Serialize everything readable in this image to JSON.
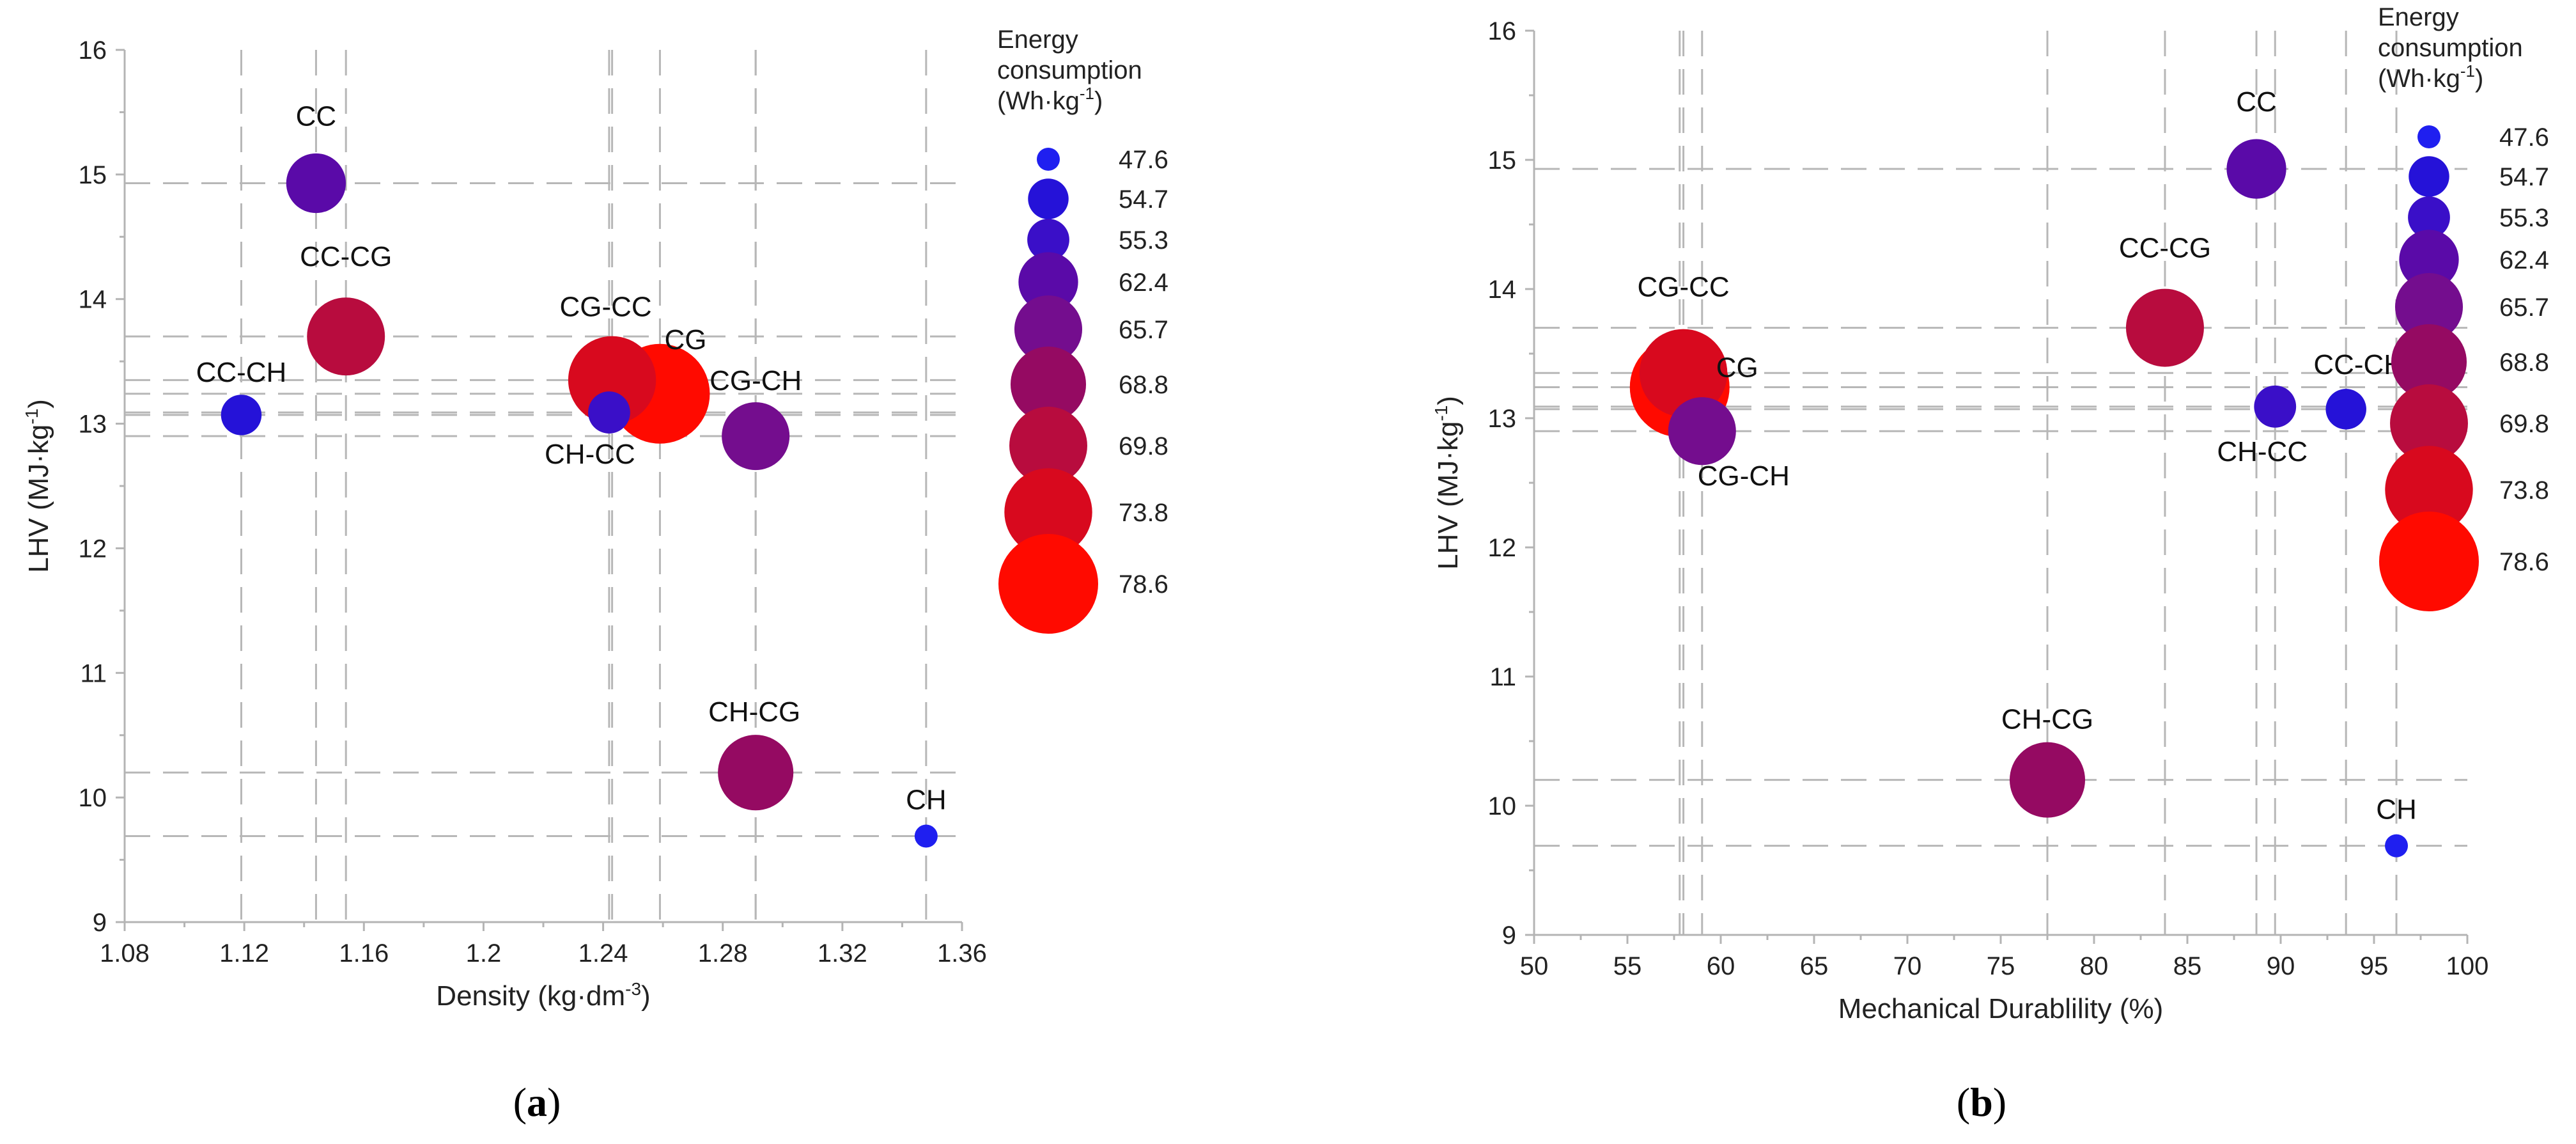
{
  "chart_data": [
    {
      "type": "scatter",
      "panel_label": "a",
      "xlabel": "Density (kg·dm",
      "xlabel_sup": "-3",
      "xlabel_end": ")",
      "ylabel": "LHV (MJ·kg",
      "ylabel_sup": "-1",
      "ylabel_end": ")",
      "xlim": [
        1.08,
        1.36
      ],
      "ylim": [
        9,
        16
      ],
      "x_ticks": [
        "1.08",
        "1.12",
        "1.16",
        "1.2",
        "1.24",
        "1.28",
        "1.32",
        "1.36"
      ],
      "y_ticks": [
        "9",
        "10",
        "11",
        "12",
        "13",
        "14",
        "15",
        "16"
      ],
      "size_variable": "Energy consumption (Wh·kg-1)",
      "points": [
        {
          "label": "CC",
          "x": 1.144,
          "y": 14.93,
          "energy": 62.4
        },
        {
          "label": "CC-CG",
          "x": 1.154,
          "y": 13.7,
          "energy": 69.8
        },
        {
          "label": "CC-CH",
          "x": 1.119,
          "y": 13.07,
          "energy": 54.7
        },
        {
          "label": "CG-CC",
          "x": 1.243,
          "y": 13.35,
          "energy": 73.8
        },
        {
          "label": "CG",
          "x": 1.259,
          "y": 13.24,
          "energy": 78.6
        },
        {
          "label": "CH-CC",
          "x": 1.242,
          "y": 13.09,
          "energy": 55.3
        },
        {
          "label": "CG-CH",
          "x": 1.291,
          "y": 12.9,
          "energy": 65.7
        },
        {
          "label": "CH-CG",
          "x": 1.291,
          "y": 10.2,
          "energy": 68.8
        },
        {
          "label": "CH",
          "x": 1.348,
          "y": 9.69,
          "energy": 47.6
        }
      ]
    },
    {
      "type": "scatter",
      "panel_label": "b",
      "xlabel": "Mechanical Durablility (%)",
      "ylabel": "LHV (MJ·kg",
      "ylabel_sup": "-1",
      "ylabel_end": ")",
      "xlim": [
        50,
        100
      ],
      "ylim": [
        9,
        16
      ],
      "x_ticks": [
        "50",
        "55",
        "60",
        "65",
        "70",
        "75",
        "80",
        "85",
        "90",
        "95",
        "100"
      ],
      "y_ticks": [
        "9",
        "10",
        "11",
        "12",
        "13",
        "14",
        "15",
        "16"
      ],
      "size_variable": "Energy consumption (Wh·kg-1)",
      "points": [
        {
          "label": "CC",
          "x": 88.7,
          "y": 14.93,
          "energy": 62.4
        },
        {
          "label": "CC-CG",
          "x": 83.8,
          "y": 13.7,
          "energy": 69.8
        },
        {
          "label": "CG-CC",
          "x": 58.0,
          "y": 13.35,
          "energy": 73.8
        },
        {
          "label": "CG",
          "x": 57.8,
          "y": 13.24,
          "energy": 78.6
        },
        {
          "label": "CG-CH",
          "x": 59.0,
          "y": 12.9,
          "energy": 65.7
        },
        {
          "label": "CH-CC",
          "x": 89.7,
          "y": 13.09,
          "energy": 55.3
        },
        {
          "label": "CC-CH",
          "x": 93.5,
          "y": 13.07,
          "energy": 54.7
        },
        {
          "label": "CH-CG",
          "x": 77.5,
          "y": 10.2,
          "energy": 68.8
        },
        {
          "label": "CH",
          "x": 96.2,
          "y": 9.69,
          "energy": 47.6
        }
      ]
    }
  ],
  "legend": {
    "title_lines": [
      "Energy",
      "consumption",
      "(Wh·kg"
    ],
    "title_sup": "-1",
    "title_end": ")",
    "entries": [
      {
        "label": "47.6",
        "value": 47.6,
        "color": "#1f1ff0"
      },
      {
        "label": "54.7",
        "value": 54.7,
        "color": "#2512d8"
      },
      {
        "label": "55.3",
        "value": 55.3,
        "color": "#3a0fc8"
      },
      {
        "label": "62.4",
        "value": 62.4,
        "color": "#5a0aa8"
      },
      {
        "label": "65.7",
        "value": 65.7,
        "color": "#740d8e"
      },
      {
        "label": "68.8",
        "value": 68.8,
        "color": "#950a62"
      },
      {
        "label": "69.8",
        "value": 69.8,
        "color": "#b80c3e"
      },
      {
        "label": "73.8",
        "value": 73.8,
        "color": "#d8091e"
      },
      {
        "label": "78.6",
        "value": 78.6,
        "color": "#ff0a00"
      }
    ]
  }
}
